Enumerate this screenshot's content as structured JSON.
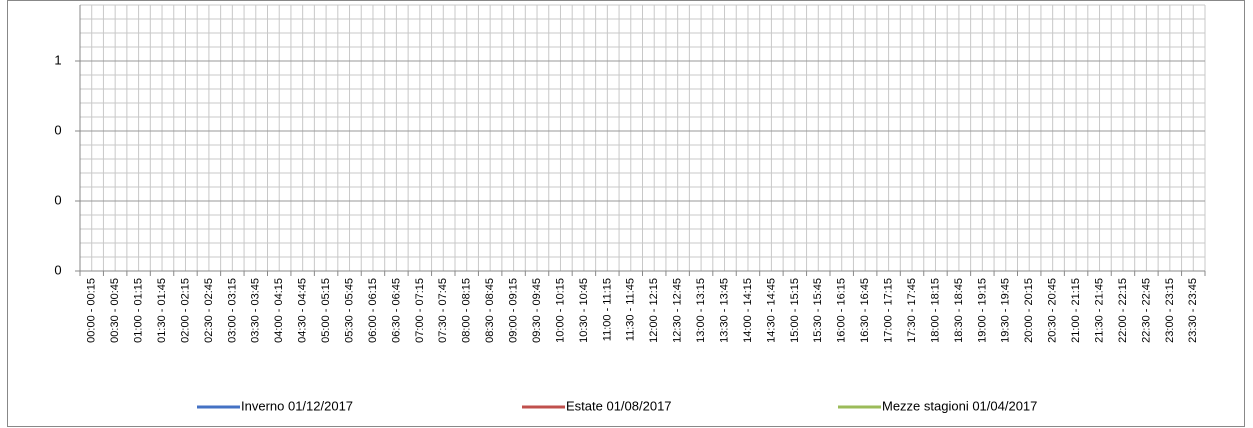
{
  "chart_data": {
    "type": "line",
    "categories": [
      "00:00 - 00:15",
      "00:30 - 00:45",
      "01:00 - 01:15",
      "01:30 - 01:45",
      "02:00 - 02:15",
      "02:30 - 02:45",
      "03:00 - 03:15",
      "03:30 - 03:45",
      "04:00 - 04:15",
      "04:30 - 04:45",
      "05:00 - 05:15",
      "05:30 - 05:45",
      "06:00 - 06:15",
      "06:30 - 06:45",
      "07:00 - 07:15",
      "07:30 - 07:45",
      "08:00 - 08:15",
      "08:30 - 08:45",
      "09:00 - 09:15",
      "09:30 - 09:45",
      "10:00 - 10:15",
      "10:30 - 10:45",
      "11:00 - 11:15",
      "11:30 - 11:45",
      "12:00 - 12:15",
      "12:30 - 12:45",
      "13:00 - 13:15",
      "13:30 - 13:45",
      "14:00 - 14:15",
      "14:30 - 14:45",
      "15:00 - 15:15",
      "15:30 - 15:45",
      "16:00 - 16:15",
      "16:30 - 16:45",
      "17:00 - 17:15",
      "17:30 - 17:45",
      "18:00 - 18:15",
      "18:30 - 18:45",
      "19:00 - 19:15",
      "19:30 - 19:45",
      "20:00 - 20:15",
      "20:30 - 20:45",
      "21:00 - 21:15",
      "21:30 - 21:45",
      "22:00 - 22:15",
      "22:30 - 22:45",
      "23:00 - 23:15",
      "23:30 - 23:45"
    ],
    "series": [
      {
        "name": "Inverno 01/12/2017",
        "color": "#4472c4",
        "values": [
          null,
          null,
          null,
          null,
          null,
          null,
          null,
          null,
          null,
          null,
          null,
          null,
          null,
          null,
          null,
          null,
          null,
          null,
          null,
          null,
          null,
          null,
          null,
          null,
          null,
          null,
          null,
          null,
          null,
          null,
          null,
          null,
          null,
          null,
          null,
          null,
          null,
          null,
          null,
          null,
          null,
          null,
          null,
          null,
          null,
          null,
          null,
          null
        ]
      },
      {
        "name": "Estate 01/08/2017",
        "color": "#c0504d",
        "values": [
          null,
          null,
          null,
          null,
          null,
          null,
          null,
          null,
          null,
          null,
          null,
          null,
          null,
          null,
          null,
          null,
          null,
          null,
          null,
          null,
          null,
          null,
          null,
          null,
          null,
          null,
          null,
          null,
          null,
          null,
          null,
          null,
          null,
          null,
          null,
          null,
          null,
          null,
          null,
          null,
          null,
          null,
          null,
          null,
          null,
          null,
          null,
          null
        ]
      },
      {
        "name": "Mezze stagioni 01/04/2017",
        "color": "#9bbb59",
        "values": [
          null,
          null,
          null,
          null,
          null,
          null,
          null,
          null,
          null,
          null,
          null,
          null,
          null,
          null,
          null,
          null,
          null,
          null,
          null,
          null,
          null,
          null,
          null,
          null,
          null,
          null,
          null,
          null,
          null,
          null,
          null,
          null,
          null,
          null,
          null,
          null,
          null,
          null,
          null,
          null,
          null,
          null,
          null,
          null,
          null,
          null,
          null,
          null
        ]
      }
    ],
    "ylim": [
      0,
      0.76
    ],
    "yticks": [
      0,
      {
        "value": 0.2,
        "label": "0"
      },
      {
        "value": 0.4,
        "label": "0"
      },
      {
        "value": 0.6,
        "label": "1"
      }
    ],
    "grid": true,
    "legend": "bottom"
  }
}
